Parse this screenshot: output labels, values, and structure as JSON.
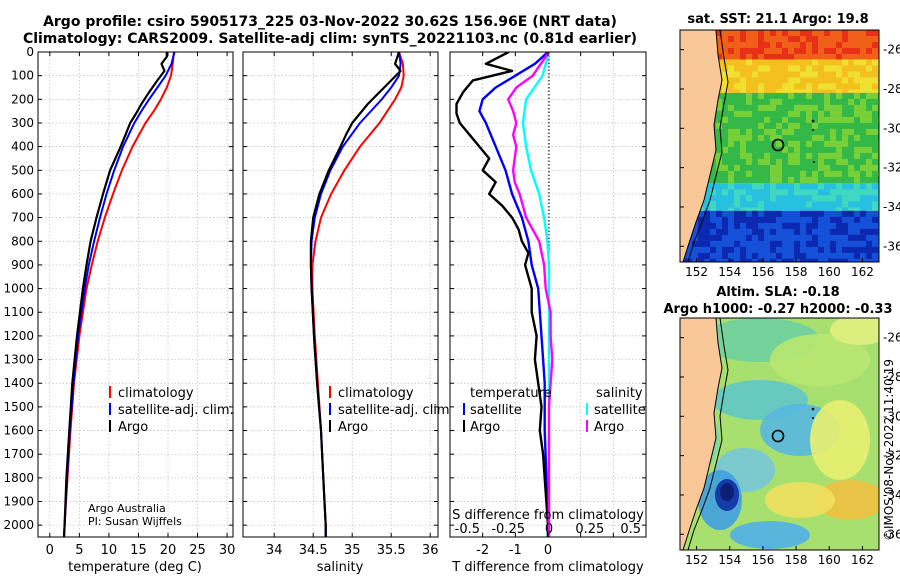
{
  "title": {
    "line1": "Argo profile: csiro 5905173_225 03-Nov-2022 30.62S 156.96E (NRT data)",
    "line2": "Climatology: CARS2009. Satellite-adj clim: synTS_20221103.nc (0.81d earlier)"
  },
  "credit": {
    "line1": "Argo Australia",
    "line2": "PI: Susan Wijffels"
  },
  "timestamp": "©IMOS 08-Nov-2022 11:40:19",
  "colors": {
    "climatology": "#ff0000",
    "satellite": "#0000ff",
    "argo": "#000000",
    "sat_salinity": "#00ffff",
    "argo_salinity_diff": "#ff00ff",
    "land": "#f8c898"
  },
  "chart_data": [
    {
      "type": "line",
      "id": "temperature",
      "xlabel": "temperature (deg C)",
      "ylabel": "",
      "xlim": [
        -2,
        31
      ],
      "ylim": [
        2050,
        0
      ],
      "xticks": [
        0,
        5,
        10,
        15,
        20,
        25,
        30
      ],
      "yticks": [
        0,
        100,
        200,
        300,
        400,
        500,
        600,
        700,
        800,
        900,
        1000,
        1100,
        1200,
        1300,
        1400,
        1500,
        1600,
        1700,
        1800,
        1900,
        2000
      ],
      "legend": [
        "climatology",
        "satellite-adj. clim.",
        "Argo"
      ],
      "series": [
        {
          "name": "climatology",
          "depth": [
            0,
            50,
            100,
            150,
            200,
            250,
            300,
            400,
            500,
            600,
            700,
            800,
            900,
            1000,
            1200,
            1400,
            1600,
            1800,
            2000,
            2050
          ],
          "values": [
            21,
            20.8,
            20.5,
            19.8,
            18.8,
            17.6,
            16.2,
            14,
            12.2,
            10.7,
            9.3,
            8.1,
            7.1,
            6.2,
            5,
            4.1,
            3.5,
            3,
            2.5,
            2.4
          ]
        },
        {
          "name": "satellite-adj. clim.",
          "depth": [
            0,
            50,
            100,
            150,
            200,
            250,
            300,
            400,
            500,
            600,
            700,
            800,
            900,
            1000,
            1200,
            1400,
            1600,
            1800,
            2000,
            2050
          ],
          "values": [
            21.1,
            20.6,
            19.6,
            18.2,
            16.8,
            15.5,
            14.3,
            12.4,
            10.9,
            9.6,
            8.5,
            7.5,
            6.6,
            5.9,
            4.8,
            4,
            3.4,
            2.9,
            2.5,
            2.4
          ]
        },
        {
          "name": "Argo",
          "depth": [
            0,
            20,
            50,
            80,
            120,
            170,
            220,
            260,
            300,
            350,
            400,
            450,
            500,
            600,
            700,
            800,
            900,
            1000,
            1200,
            1400,
            1600,
            1800,
            2000,
            2050
          ],
          "values": [
            19.8,
            19.8,
            18.9,
            19.4,
            18.2,
            16.8,
            15.5,
            14.6,
            13.6,
            12.8,
            12,
            11.1,
            10.2,
            9,
            7.9,
            6.9,
            6.2,
            5.6,
            4.6,
            3.8,
            3.3,
            2.8,
            2.5,
            2.4
          ]
        }
      ]
    },
    {
      "type": "line",
      "id": "salinity",
      "xlabel": "salinity",
      "ylabel": "",
      "xlim": [
        33.6,
        36.1
      ],
      "ylim": [
        2050,
        0
      ],
      "xticks": [
        34,
        34.5,
        35,
        35.5,
        36
      ],
      "legend": [
        "climatology",
        "satellite-adj. clim.",
        "Argo"
      ],
      "series": [
        {
          "name": "climatology",
          "depth": [
            0,
            50,
            100,
            150,
            200,
            300,
            400,
            500,
            600,
            700,
            800,
            900,
            1000,
            1200,
            1400,
            1600,
            1800,
            2000,
            2050
          ],
          "values": [
            35.6,
            35.65,
            35.66,
            35.63,
            35.55,
            35.35,
            35.1,
            34.9,
            34.73,
            34.6,
            34.53,
            34.49,
            34.49,
            34.52,
            34.56,
            34.6,
            34.63,
            34.66,
            34.66
          ]
        },
        {
          "name": "satellite-adj. clim.",
          "depth": [
            0,
            50,
            100,
            150,
            200,
            300,
            400,
            500,
            600,
            700,
            800,
            900,
            1000,
            1200,
            1400,
            1600,
            1800,
            2000,
            2050
          ],
          "values": [
            35.6,
            35.62,
            35.6,
            35.5,
            35.38,
            35.1,
            34.88,
            34.72,
            34.6,
            34.52,
            34.48,
            34.47,
            34.48,
            34.51,
            34.55,
            34.6,
            34.63,
            34.66,
            34.66
          ]
        },
        {
          "name": "Argo",
          "depth": [
            0,
            20,
            50,
            80,
            120,
            170,
            220,
            260,
            300,
            350,
            400,
            500,
            600,
            700,
            800,
            900,
            1000,
            1200,
            1400,
            1600,
            1800,
            2000,
            2050
          ],
          "values": [
            35.6,
            35.58,
            35.55,
            35.62,
            35.5,
            35.35,
            35.2,
            35.1,
            35.0,
            34.92,
            34.85,
            34.7,
            34.58,
            34.5,
            34.47,
            34.47,
            34.48,
            34.51,
            34.55,
            34.6,
            34.63,
            34.66,
            34.66
          ]
        }
      ]
    },
    {
      "type": "line",
      "id": "differences",
      "xlabel": "T difference from climatology",
      "x2label": "S difference from climatology",
      "xlim": [
        -3,
        3
      ],
      "ylim": [
        2050,
        0
      ],
      "xticks": [
        -2,
        -1,
        0,
        1,
        2
      ],
      "xticklabels": [
        "-2",
        "-1",
        "0",
        "",
        ""
      ],
      "x2ticks": [
        -0.5,
        -0.25,
        0,
        0.25,
        0.5
      ],
      "x2lim": [
        -0.6,
        0.6
      ],
      "legend_temperature_title": "temperature",
      "legend_salinity_title": "salinity",
      "legend_temperature": [
        "satellite",
        "Argo"
      ],
      "legend_salinity": [
        "satellite",
        "Argo"
      ],
      "series": [
        {
          "name": "T satellite",
          "axis": "T",
          "depth": [
            0,
            50,
            100,
            150,
            200,
            250,
            300,
            400,
            500,
            600,
            700,
            800,
            900,
            1000,
            1200,
            1400,
            1600,
            1800,
            2000,
            2050
          ],
          "values": [
            0,
            -0.4,
            -1,
            -1.6,
            -2.0,
            -2.1,
            -1.9,
            -1.6,
            -1.3,
            -1.1,
            -0.8,
            -0.6,
            -0.5,
            -0.3,
            -0.2,
            -0.1,
            -0.1,
            -0.05,
            0,
            0
          ]
        },
        {
          "name": "T Argo",
          "axis": "T",
          "depth": [
            0,
            50,
            80,
            120,
            170,
            220,
            260,
            300,
            350,
            400,
            450,
            500,
            550,
            600,
            650,
            700,
            750,
            800,
            850,
            900,
            950,
            1000,
            1100,
            1200,
            1300,
            1400,
            1500,
            1600,
            1700,
            1800,
            2000,
            2050
          ],
          "values": [
            -1.2,
            -1.9,
            -1.1,
            -2.3,
            -2.6,
            -2.8,
            -2.8,
            -2.7,
            -2.4,
            -2.1,
            -1.8,
            -2.0,
            -1.6,
            -1.8,
            -1.4,
            -1.1,
            -0.9,
            -0.8,
            -0.6,
            -0.7,
            -0.6,
            -0.5,
            -0.5,
            -0.35,
            -0.4,
            -0.3,
            -0.2,
            -0.25,
            -0.15,
            -0.1,
            0,
            0
          ]
        },
        {
          "name": "S satellite",
          "axis": "S",
          "depth": [
            0,
            50,
            100,
            150,
            200,
            300,
            400,
            500,
            600,
            700,
            800,
            900,
            1000,
            1200,
            1400,
            1600,
            1800,
            2000,
            2050
          ],
          "values": [
            0,
            -0.02,
            -0.04,
            -0.09,
            -0.14,
            -0.16,
            -0.14,
            -0.11,
            -0.06,
            -0.03,
            -0.01,
            0,
            0,
            0,
            0,
            0,
            0,
            0,
            0
          ]
        },
        {
          "name": "S Argo",
          "axis": "S",
          "depth": [
            0,
            50,
            100,
            150,
            200,
            250,
            300,
            350,
            400,
            450,
            500,
            550,
            600,
            650,
            700,
            800,
            900,
            1000,
            1100,
            1200,
            1300,
            1400,
            1500,
            1600,
            1700,
            1800,
            2000,
            2050
          ],
          "values": [
            0,
            -0.05,
            -0.1,
            -0.2,
            -0.25,
            -0.22,
            -0.2,
            -0.22,
            -0.2,
            -0.21,
            -0.22,
            -0.21,
            -0.18,
            -0.16,
            -0.14,
            -0.06,
            -0.03,
            -0.02,
            0.01,
            0.01,
            0.02,
            0.01,
            0,
            0,
            0,
            0,
            0,
            0
          ]
        }
      ]
    },
    {
      "type": "heatmap",
      "id": "sst-map",
      "title": "sat. SST: 21.1 Argo: 19.8",
      "xlim": [
        151,
        163
      ],
      "ylim": [
        -36.8,
        -25
      ],
      "xticks": [
        152,
        154,
        156,
        158,
        160,
        162
      ],
      "yticks": [
        -26,
        -28,
        -30,
        -32,
        -34,
        -36
      ],
      "argo_position": [
        156.96,
        -30.62
      ],
      "bands": [
        {
          "lat_top": -25,
          "lat_bottom": -26.5,
          "value": "warm",
          "color": "#f06018"
        },
        {
          "lat_top": -26.5,
          "lat_bottom": -28.2,
          "value": "warm",
          "color": "#f4c020"
        },
        {
          "lat_top": -28.2,
          "lat_bottom": -32.8,
          "value": "mid",
          "color": "#34b848"
        },
        {
          "lat_top": -32.8,
          "lat_bottom": -34.2,
          "value": "cool",
          "color": "#28c0e0"
        },
        {
          "lat_top": -34.2,
          "lat_bottom": -36.8,
          "value": "cold",
          "color": "#1450d8"
        }
      ]
    },
    {
      "type": "heatmap",
      "id": "sla-map",
      "title1": "Altim. SLA: -0.18",
      "title2": "Argo h1000: -0.27 h2000: -0.33",
      "xlim": [
        151,
        163
      ],
      "ylim": [
        -36.8,
        -25
      ],
      "xticks": [
        152,
        154,
        156,
        158,
        160,
        162
      ],
      "yticks": [
        -26,
        -28,
        -30,
        -32,
        -34,
        -36
      ],
      "argo_position": [
        156.96,
        -30.62
      ]
    }
  ]
}
